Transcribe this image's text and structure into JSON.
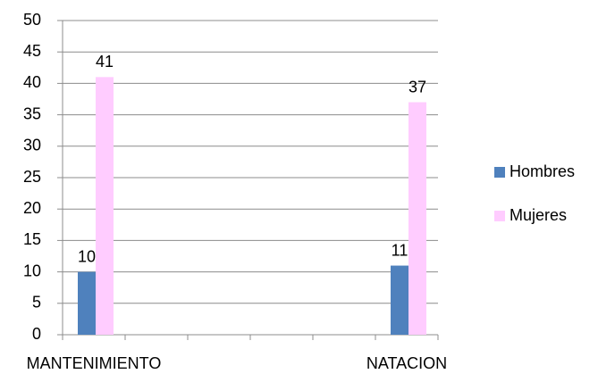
{
  "chart_data": {
    "type": "bar",
    "categories": [
      "MANTENIMIENTO",
      null,
      null,
      null,
      null,
      "NATACION"
    ],
    "series": [
      {
        "name": "Hombres",
        "color": "#4f81bd",
        "values": [
          10,
          null,
          null,
          null,
          null,
          11
        ]
      },
      {
        "name": "Mujeres",
        "color": "#ffccff",
        "values": [
          41,
          null,
          null,
          null,
          null,
          37
        ]
      }
    ],
    "ylim": [
      0,
      50
    ],
    "yticks": [
      0,
      5,
      10,
      15,
      20,
      25,
      30,
      35,
      40,
      45,
      50
    ],
    "grid": true,
    "legend": "right"
  }
}
